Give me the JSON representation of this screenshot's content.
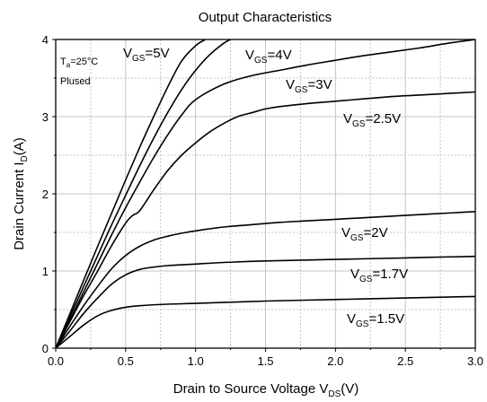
{
  "chart_data": {
    "type": "line",
    "title": "Output Characteristics",
    "xlabel": {
      "main": "Drain to Source Voltage V",
      "sub": "DS",
      "tail": "(V)"
    },
    "ylabel": {
      "main": "Drain Current I",
      "sub": "D",
      "tail": "(A)"
    },
    "xlim": [
      0,
      3.0
    ],
    "ylim": [
      0,
      4
    ],
    "xticks": [
      "0.0",
      "0.5",
      "1.0",
      "1.5",
      "2.0",
      "2.5",
      "3.0"
    ],
    "yticks": [
      "0",
      "1",
      "2",
      "3",
      "4"
    ],
    "grid": true,
    "conditions": [
      {
        "main": "T",
        "sub": "a",
        "tail": "=25°C"
      },
      {
        "main": "Plused",
        "sub": "",
        "tail": ""
      }
    ],
    "series": [
      {
        "main": "V",
        "sub": "GS",
        "tail": "=5V",
        "x": [
          0,
          0.1,
          0.2,
          0.3,
          0.4,
          0.5,
          0.6,
          0.7,
          0.8,
          0.9,
          1.0,
          1.07
        ],
        "y": [
          0,
          0.44,
          0.88,
          1.32,
          1.75,
          2.18,
          2.6,
          3.0,
          3.38,
          3.72,
          3.92,
          4.0
        ]
      },
      {
        "main": "V",
        "sub": "GS",
        "tail": "=4V",
        "x": [
          0,
          0.1,
          0.2,
          0.3,
          0.4,
          0.5,
          0.6,
          0.7,
          0.8,
          0.9,
          1.0,
          1.1,
          1.2,
          1.25
        ],
        "y": [
          0,
          0.4,
          0.8,
          1.2,
          1.6,
          1.98,
          2.36,
          2.72,
          3.05,
          3.35,
          3.6,
          3.8,
          3.95,
          4.0
        ]
      },
      {
        "main": "V",
        "sub": "GS",
        "tail": "=3V",
        "x": [
          0,
          0.1,
          0.2,
          0.3,
          0.4,
          0.5,
          0.6,
          0.7,
          0.8,
          0.9,
          1.0,
          1.2,
          1.4,
          1.6,
          1.8,
          2.0,
          2.2,
          2.4,
          2.6,
          2.8,
          3.0
        ],
        "y": [
          0,
          0.36,
          0.73,
          1.1,
          1.47,
          1.82,
          2.15,
          2.47,
          2.76,
          3.02,
          3.22,
          3.42,
          3.53,
          3.6,
          3.67,
          3.73,
          3.79,
          3.84,
          3.89,
          3.95,
          4.0
        ]
      },
      {
        "main": "V",
        "sub": "GS",
        "tail": "=2.5V",
        "x": [
          0,
          0.1,
          0.2,
          0.3,
          0.4,
          0.5,
          0.55,
          0.6,
          0.7,
          0.8,
          0.9,
          1.0,
          1.1,
          1.2,
          1.3,
          1.4,
          1.5,
          1.6,
          1.8,
          2.0,
          2.2,
          2.4,
          2.6,
          2.8,
          3.0
        ],
        "y": [
          0,
          0.34,
          0.68,
          1.0,
          1.33,
          1.62,
          1.72,
          1.78,
          2.05,
          2.3,
          2.5,
          2.66,
          2.8,
          2.91,
          3.0,
          3.05,
          3.1,
          3.13,
          3.17,
          3.2,
          3.23,
          3.26,
          3.28,
          3.3,
          3.32
        ]
      },
      {
        "main": "V",
        "sub": "GS",
        "tail": "=2V",
        "x": [
          0,
          0.1,
          0.2,
          0.3,
          0.4,
          0.5,
          0.6,
          0.7,
          0.8,
          0.9,
          1.0,
          1.2,
          1.4,
          1.6,
          1.8,
          2.0,
          2.2,
          2.4,
          2.6,
          2.8,
          3.0
        ],
        "y": [
          0,
          0.28,
          0.55,
          0.8,
          1.03,
          1.2,
          1.32,
          1.4,
          1.45,
          1.49,
          1.52,
          1.57,
          1.6,
          1.63,
          1.65,
          1.67,
          1.69,
          1.71,
          1.73,
          1.75,
          1.77
        ]
      },
      {
        "main": "V",
        "sub": "GS",
        "tail": "=1.7V",
        "x": [
          0,
          0.1,
          0.2,
          0.3,
          0.4,
          0.5,
          0.6,
          0.7,
          0.8,
          1.0,
          1.2,
          1.5,
          2.0,
          2.5,
          3.0
        ],
        "y": [
          0,
          0.22,
          0.45,
          0.65,
          0.83,
          0.95,
          1.02,
          1.05,
          1.07,
          1.09,
          1.11,
          1.13,
          1.15,
          1.17,
          1.19
        ]
      },
      {
        "main": "V",
        "sub": "GS",
        "tail": "=1.5V",
        "x": [
          0,
          0.1,
          0.2,
          0.3,
          0.4,
          0.5,
          0.6,
          0.8,
          1.0,
          1.5,
          2.0,
          2.5,
          3.0
        ],
        "y": [
          0,
          0.15,
          0.3,
          0.42,
          0.49,
          0.53,
          0.55,
          0.57,
          0.58,
          0.61,
          0.63,
          0.65,
          0.67
        ]
      }
    ]
  }
}
